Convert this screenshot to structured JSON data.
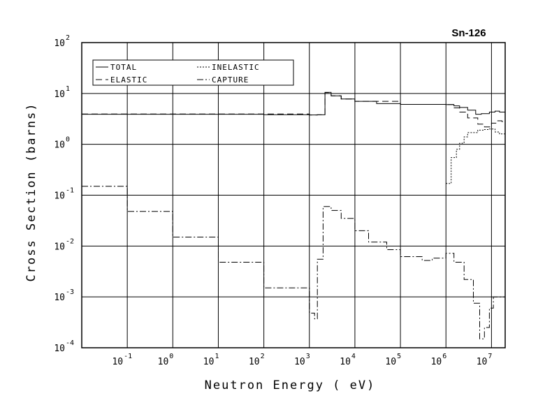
{
  "chart_data": {
    "type": "line",
    "title": "Sn-126",
    "xlabel": "Neutron Energy ( eV)",
    "ylabel": "Cross Section (barns)",
    "x_scale": "log",
    "y_scale": "log",
    "xlim": [
      0.01,
      20000000
    ],
    "ylim": [
      0.0001,
      100
    ],
    "grid": true,
    "x_ticks": [
      {
        "base": "10",
        "exp": "-1",
        "value": 0.1
      },
      {
        "base": "10",
        "exp": "0",
        "value": 1
      },
      {
        "base": "10",
        "exp": "1",
        "value": 10
      },
      {
        "base": "10",
        "exp": "2",
        "value": 100
      },
      {
        "base": "10",
        "exp": "3",
        "value": 1000
      },
      {
        "base": "10",
        "exp": "4",
        "value": 10000
      },
      {
        "base": "10",
        "exp": "5",
        "value": 100000
      },
      {
        "base": "10",
        "exp": "6",
        "value": 1000000
      },
      {
        "base": "10",
        "exp": "7",
        "value": 10000000
      }
    ],
    "y_ticks": [
      {
        "base": "10",
        "exp": "2",
        "value": 100
      },
      {
        "base": "10",
        "exp": "1",
        "value": 10
      },
      {
        "base": "10",
        "exp": "0",
        "value": 1
      },
      {
        "base": "10",
        "exp": "-1",
        "value": 0.1
      },
      {
        "base": "10",
        "exp": "-2",
        "value": 0.01
      },
      {
        "base": "10",
        "exp": "-3",
        "value": 0.001
      },
      {
        "base": "10",
        "exp": "-4",
        "value": 0.0001
      }
    ],
    "legend_position": "top-left",
    "series": [
      {
        "name": "TOTAL",
        "style": "solid",
        "points": [
          [
            0.01,
            3.9
          ],
          [
            1,
            3.9
          ],
          [
            100,
            3.82
          ],
          [
            1000,
            3.78
          ],
          [
            1500,
            3.8
          ],
          [
            2200,
            10.5
          ],
          [
            3000,
            9.0
          ],
          [
            5000,
            7.8
          ],
          [
            10000,
            7.0
          ],
          [
            30000,
            6.3
          ],
          [
            100000,
            6.1
          ],
          [
            1000000,
            6.05
          ],
          [
            1500000,
            5.7
          ],
          [
            2000000,
            5.3
          ],
          [
            3000000,
            4.7
          ],
          [
            4500000,
            3.9
          ],
          [
            6000000,
            4.0
          ],
          [
            9000000,
            4.3
          ],
          [
            12000000,
            4.5
          ],
          [
            15000000,
            4.3
          ],
          [
            20000000,
            3.8
          ]
        ]
      },
      {
        "name": "ELASTIC",
        "style": "dashed",
        "points": [
          [
            0.01,
            3.95
          ],
          [
            1,
            3.95
          ],
          [
            30,
            3.95
          ],
          [
            1000,
            3.78
          ],
          [
            1500,
            3.8
          ],
          [
            2200,
            10.4
          ],
          [
            3000,
            9.0
          ],
          [
            5000,
            7.8
          ],
          [
            10000,
            7.0
          ],
          [
            100000,
            6.1
          ],
          [
            1000000,
            6.05
          ],
          [
            1500000,
            5.2
          ],
          [
            2000000,
            4.3
          ],
          [
            3000000,
            3.3
          ],
          [
            5000000,
            2.5
          ],
          [
            7000000,
            2.2
          ],
          [
            10000000,
            2.6
          ],
          [
            13000000,
            2.9
          ],
          [
            17000000,
            2.8
          ],
          [
            20000000,
            2.7
          ]
        ]
      },
      {
        "name": "INELASTIC",
        "style": "dotted",
        "points": [
          [
            1000000,
            0.17
          ],
          [
            1200000,
            0.17
          ],
          [
            1300000,
            0.55
          ],
          [
            1700000,
            0.8
          ],
          [
            2000000,
            1.05
          ],
          [
            2500000,
            1.4
          ],
          [
            3000000,
            1.7
          ],
          [
            5000000,
            1.9
          ],
          [
            7000000,
            1.95
          ],
          [
            9000000,
            2.0
          ],
          [
            12000000,
            1.75
          ],
          [
            15000000,
            1.6
          ],
          [
            20000000,
            1.6
          ]
        ]
      },
      {
        "name": "CAPTURE",
        "style": "dashdot",
        "points": [
          [
            0.01,
            0.15
          ],
          [
            0.1,
            0.048
          ],
          [
            1,
            0.015
          ],
          [
            10,
            0.0048
          ],
          [
            100,
            0.0015
          ],
          [
            1000,
            0.00048
          ],
          [
            1300,
            0.00037
          ],
          [
            1500,
            0.0055
          ],
          [
            2000,
            0.06
          ],
          [
            3000,
            0.05
          ],
          [
            5000,
            0.035
          ],
          [
            10000,
            0.02
          ],
          [
            20000,
            0.012
          ],
          [
            50000,
            0.0085
          ],
          [
            100000,
            0.0062
          ],
          [
            300000,
            0.0052
          ],
          [
            500000,
            0.0058
          ],
          [
            1000000,
            0.0072
          ],
          [
            1500000,
            0.0048
          ],
          [
            2500000,
            0.0022
          ],
          [
            4000000,
            0.00075
          ],
          [
            5500000,
            0.00015
          ],
          [
            7000000,
            0.00025
          ],
          [
            9000000,
            0.0006
          ],
          [
            11000000,
            0.001
          ],
          [
            14000000,
            0.001
          ],
          [
            20000000,
            0.001
          ]
        ]
      }
    ]
  }
}
